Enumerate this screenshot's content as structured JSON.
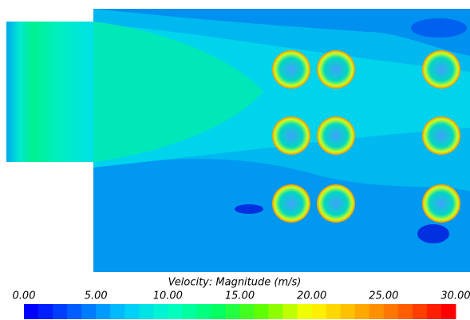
{
  "chart_data": {
    "type": "contour",
    "colorbar_label": "Velocity: Magnitude (m/s)",
    "clim": [
      0,
      30
    ],
    "levels": 30,
    "colormap": [
      "#0000ff",
      "#0064ff",
      "#00c8ff",
      "#00ffc8",
      "#00ff64",
      "#64ff00",
      "#ffff00",
      "#ffb400",
      "#ff6400",
      "#ff0000"
    ],
    "cticks": [
      {
        "value": 0,
        "label": "0.00"
      },
      {
        "value": 5,
        "label": "5.00"
      },
      {
        "value": 10,
        "label": "10.00"
      },
      {
        "value": 15,
        "label": "15.00"
      },
      {
        "value": 20,
        "label": "20.00"
      },
      {
        "value": 25,
        "label": "25.00"
      },
      {
        "value": 30,
        "label": "30.00"
      }
    ]
  }
}
